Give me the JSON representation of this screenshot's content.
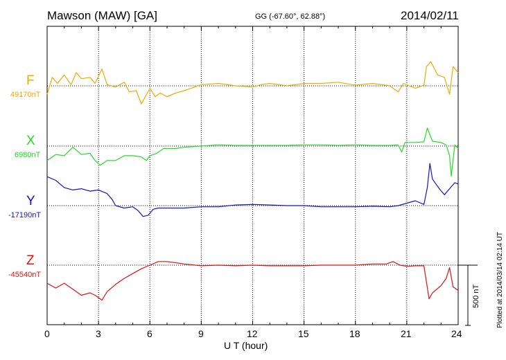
{
  "header": {
    "station": "Mawson (MAW)  [GA]",
    "coords": "GG (-67.60°,  62.88°)",
    "date": "2014/02/11"
  },
  "footer": {
    "plotted": "Plotted at 2014/03/14 02:14 UT"
  },
  "chart_data": {
    "type": "line",
    "title": "Mawson (MAW)  [GA]",
    "xlabel": "U T (hour)",
    "ylabel": "",
    "xlim": [
      0,
      24
    ],
    "x_ticks": [
      "0",
      "3",
      "6",
      "9",
      "12",
      "15",
      "18",
      "21",
      "24"
    ],
    "grid": "dotted vertical lines every 3 h; dotted baseline per trace",
    "scale_bar": {
      "value": 500,
      "unit": "nT",
      "label": "500 nT"
    },
    "colors": {
      "F": "#f5a800",
      "X": "#22dd22",
      "Y": "#1010d0",
      "Z": "#e01010"
    },
    "series": [
      {
        "name": "F",
        "baseline_label": "49170nT",
        "points": [
          [
            0,
            49100
          ],
          [
            0.3,
            49240
          ],
          [
            0.6,
            49190
          ],
          [
            1.0,
            49260
          ],
          [
            1.4,
            49180
          ],
          [
            1.7,
            49280
          ],
          [
            2.0,
            49230
          ],
          [
            2.5,
            49240
          ],
          [
            2.8,
            49190
          ],
          [
            3.2,
            49310
          ],
          [
            3.5,
            49180
          ],
          [
            4.0,
            49160
          ],
          [
            4.5,
            49200
          ],
          [
            4.8,
            49120
          ],
          [
            5.2,
            49130
          ],
          [
            5.5,
            49020
          ],
          [
            6.0,
            49150
          ],
          [
            6.3,
            49080
          ],
          [
            6.6,
            49110
          ],
          [
            7.0,
            49080
          ],
          [
            7.5,
            49110
          ],
          [
            8.0,
            49130
          ],
          [
            9.0,
            49180
          ],
          [
            10.0,
            49190
          ],
          [
            11.0,
            49170
          ],
          [
            12.0,
            49160
          ],
          [
            12.5,
            49180
          ],
          [
            13.0,
            49190
          ],
          [
            14.0,
            49170
          ],
          [
            15.0,
            49190
          ],
          [
            16.0,
            49190
          ],
          [
            17.0,
            49200
          ],
          [
            18.0,
            49175
          ],
          [
            19.0,
            49190
          ],
          [
            20.0,
            49170
          ],
          [
            20.5,
            49120
          ],
          [
            20.8,
            49190
          ],
          [
            21.5,
            49150
          ],
          [
            22.0,
            49175
          ],
          [
            22.15,
            49330
          ],
          [
            22.4,
            49370
          ],
          [
            22.8,
            49260
          ],
          [
            23.2,
            49240
          ],
          [
            23.5,
            49100
          ],
          [
            23.7,
            49330
          ],
          [
            24.0,
            49280
          ]
        ]
      },
      {
        "name": "X",
        "baseline_label": "6980nT",
        "points": [
          [
            0,
            6860
          ],
          [
            0.5,
            6910
          ],
          [
            1.0,
            6900
          ],
          [
            1.5,
            6970
          ],
          [
            2.0,
            6910
          ],
          [
            2.5,
            6920
          ],
          [
            2.8,
            6860
          ],
          [
            3.1,
            6820
          ],
          [
            3.5,
            6860
          ],
          [
            4.0,
            6860
          ],
          [
            4.5,
            6900
          ],
          [
            5.0,
            6900
          ],
          [
            5.5,
            6890
          ],
          [
            5.8,
            6860
          ],
          [
            6.0,
            6900
          ],
          [
            6.4,
            6920
          ],
          [
            6.8,
            6960
          ],
          [
            7.5,
            6960
          ],
          [
            8.0,
            6970
          ],
          [
            9.0,
            6980
          ],
          [
            10.0,
            6990
          ],
          [
            11.0,
            6985
          ],
          [
            12.0,
            6985
          ],
          [
            13.0,
            6985
          ],
          [
            14.0,
            6985
          ],
          [
            15.0,
            6990
          ],
          [
            16.0,
            6990
          ],
          [
            17.0,
            6985
          ],
          [
            18.0,
            6990
          ],
          [
            19.0,
            6985
          ],
          [
            20.0,
            6985
          ],
          [
            20.5,
            6990
          ],
          [
            20.7,
            6930
          ],
          [
            20.9,
            7010
          ],
          [
            21.5,
            7010
          ],
          [
            22.0,
            7015
          ],
          [
            22.2,
            7130
          ],
          [
            22.5,
            7020
          ],
          [
            23.0,
            7010
          ],
          [
            23.3,
            6990
          ],
          [
            23.5,
            6900
          ],
          [
            23.6,
            6730
          ],
          [
            23.8,
            6990
          ],
          [
            24.0,
            6960
          ]
        ]
      },
      {
        "name": "Y",
        "baseline_label": "-17190nT",
        "points": [
          [
            0,
            -16950
          ],
          [
            0.5,
            -16980
          ],
          [
            1.0,
            -17040
          ],
          [
            1.5,
            -17060
          ],
          [
            2.0,
            -17050
          ],
          [
            2.5,
            -17070
          ],
          [
            3.0,
            -17060
          ],
          [
            3.5,
            -17090
          ],
          [
            3.8,
            -17140
          ],
          [
            4.0,
            -17190
          ],
          [
            4.5,
            -17210
          ],
          [
            5.0,
            -17200
          ],
          [
            5.3,
            -17230
          ],
          [
            5.6,
            -17280
          ],
          [
            5.9,
            -17270
          ],
          [
            6.2,
            -17220
          ],
          [
            6.5,
            -17210
          ],
          [
            7.0,
            -17210
          ],
          [
            8.0,
            -17210
          ],
          [
            9.0,
            -17200
          ],
          [
            10.0,
            -17200
          ],
          [
            11.0,
            -17185
          ],
          [
            12.0,
            -17180
          ],
          [
            13.0,
            -17185
          ],
          [
            14.0,
            -17190
          ],
          [
            15.0,
            -17190
          ],
          [
            16.0,
            -17200
          ],
          [
            17.0,
            -17200
          ],
          [
            18.0,
            -17200
          ],
          [
            19.0,
            -17195
          ],
          [
            20.0,
            -17200
          ],
          [
            20.5,
            -17190
          ],
          [
            21.0,
            -17170
          ],
          [
            21.5,
            -17150
          ],
          [
            22.0,
            -17180
          ],
          [
            22.2,
            -17040
          ],
          [
            22.35,
            -16840
          ],
          [
            22.5,
            -16970
          ],
          [
            22.9,
            -17050
          ],
          [
            23.2,
            -17100
          ],
          [
            23.5,
            -17050
          ],
          [
            23.8,
            -17000
          ],
          [
            24.0,
            -17010
          ]
        ]
      },
      {
        "name": "Z",
        "baseline_label": "-45540nT",
        "points": [
          [
            0,
            -45690
          ],
          [
            0.5,
            -45730
          ],
          [
            1.0,
            -45690
          ],
          [
            1.5,
            -45740
          ],
          [
            2.0,
            -45790
          ],
          [
            2.5,
            -45770
          ],
          [
            2.8,
            -45790
          ],
          [
            3.2,
            -45830
          ],
          [
            3.5,
            -45760
          ],
          [
            4.0,
            -45700
          ],
          [
            4.5,
            -45650
          ],
          [
            5.0,
            -45610
          ],
          [
            5.5,
            -45570
          ],
          [
            6.0,
            -45540
          ],
          [
            6.5,
            -45510
          ],
          [
            7.0,
            -45510
          ],
          [
            8.0,
            -45530
          ],
          [
            9.0,
            -45545
          ],
          [
            10.0,
            -45540
          ],
          [
            11.0,
            -45545
          ],
          [
            12.0,
            -45540
          ],
          [
            13.0,
            -45545
          ],
          [
            14.0,
            -45545
          ],
          [
            15.0,
            -45545
          ],
          [
            16.0,
            -45540
          ],
          [
            17.0,
            -45540
          ],
          [
            18.0,
            -45540
          ],
          [
            19.0,
            -45530
          ],
          [
            19.8,
            -45530
          ],
          [
            20.2,
            -45510
          ],
          [
            20.6,
            -45540
          ],
          [
            21.0,
            -45550
          ],
          [
            21.5,
            -45545
          ],
          [
            22.0,
            -45545
          ],
          [
            22.3,
            -45820
          ],
          [
            22.5,
            -45770
          ],
          [
            23.0,
            -45710
          ],
          [
            23.3,
            -45650
          ],
          [
            23.5,
            -45560
          ],
          [
            23.7,
            -45720
          ],
          [
            24.0,
            -45750
          ]
        ]
      }
    ]
  }
}
